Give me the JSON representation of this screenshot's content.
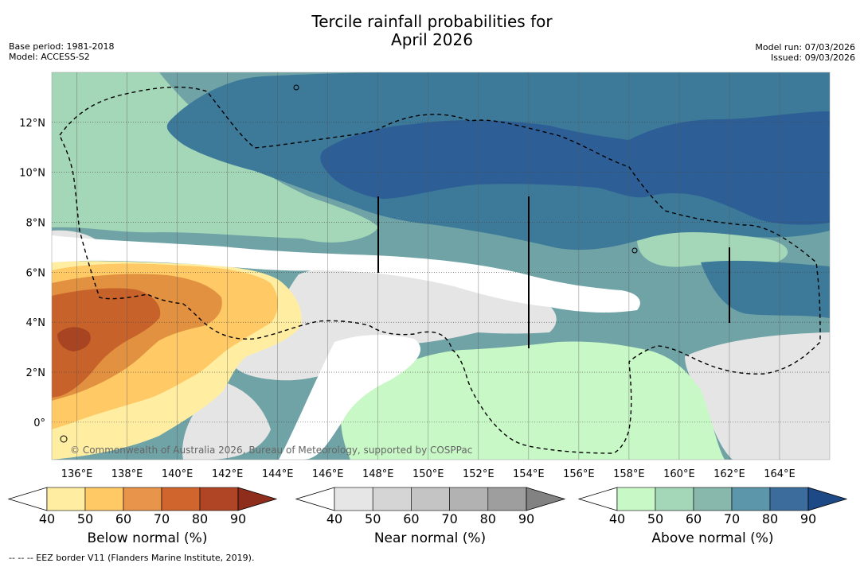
{
  "header": {
    "title_line1": "Tercile rainfall probabilities for",
    "title_line2": "April 2026",
    "base_period": "Base period: 1981-2018",
    "model": "Model: ACCESS-S2",
    "model_run": "Model run: 07/03/2026",
    "issued": "Issued: 09/03/2026"
  },
  "map": {
    "lon_labels": [
      "136°E",
      "138°E",
      "140°E",
      "142°E",
      "144°E",
      "146°E",
      "148°E",
      "150°E",
      "152°E",
      "154°E",
      "156°E",
      "158°E",
      "160°E",
      "162°E",
      "164°E"
    ],
    "lat_labels": [
      "12°N",
      "10°N",
      "8°N",
      "6°N",
      "4°N",
      "2°N",
      "0°"
    ],
    "lon_range": [
      135,
      166
    ],
    "lat_range": [
      -1.5,
      14
    ],
    "copyright": "© Commonwealth of Australia 2026, Bureau of Meteorology, supported by COSPPac"
  },
  "colorbars": [
    {
      "name": "below",
      "label": "Below normal (%)",
      "ticks": [
        "40",
        "50",
        "60",
        "70",
        "80",
        "90"
      ],
      "colors": [
        "#ffeea1",
        "#ffc965",
        "#e8944a",
        "#d0652e",
        "#b04525",
        "#8e2d1b"
      ]
    },
    {
      "name": "near",
      "label": "Near normal (%)",
      "ticks": [
        "40",
        "50",
        "60",
        "70",
        "80",
        "90"
      ],
      "colors": [
        "#e6e6e6",
        "#d5d5d5",
        "#c4c4c4",
        "#b2b2b2",
        "#9e9e9e",
        "#828282"
      ]
    },
    {
      "name": "above",
      "label": "Above normal (%)",
      "ticks": [
        "40",
        "50",
        "60",
        "70",
        "80",
        "90"
      ],
      "colors": [
        "#c8f8c5",
        "#a3d7b8",
        "#87b8ab",
        "#5b96ab",
        "#3b6c9c",
        "#1d4a86"
      ]
    }
  ],
  "palette": {
    "above_40": "#c8f8c5",
    "above_50": "#a3d7b8",
    "above_60": "#6fa3a6",
    "above_70": "#3d7a99",
    "above_80": "#2d5f96",
    "near_40": "#e5e5e5",
    "below_40": "#ffeea1",
    "below_50": "#ffc965",
    "below_60": "#e1913f",
    "below_70": "#c8622b",
    "below_80": "#a84422"
  },
  "footnote": "--  --  -- EEZ border V11 (Flanders Marine Institute, 2019)."
}
